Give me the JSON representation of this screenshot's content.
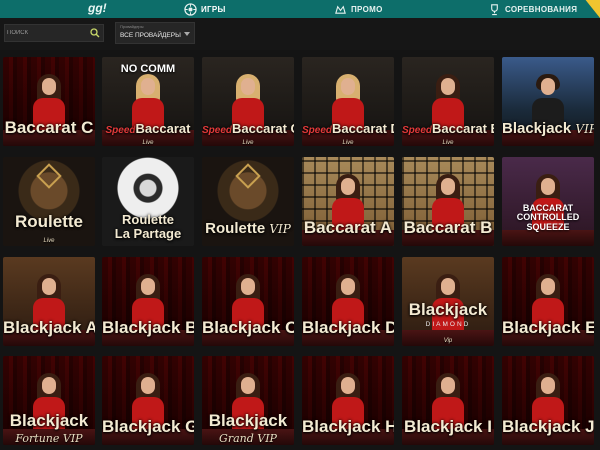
{
  "header": {
    "logo": "gg!",
    "nav": [
      {
        "label": "ИГРЫ",
        "icon": "games-icon",
        "active": true
      },
      {
        "label": "ПРОМО",
        "icon": "promo-icon",
        "active": false
      },
      {
        "label": "СОРЕВНОВАНИЯ",
        "icon": "trophy-icon",
        "active": false
      }
    ],
    "accent_color": "#0d6e6a"
  },
  "filters": {
    "search_placeholder": "ПОИСК",
    "provider_caption": "Провайдеры",
    "provider_value": "ВСЕ ПРОВАЙДЕРЫ"
  },
  "games": [
    {
      "title": "Baccarat C",
      "style": "red",
      "dealer": "brunette"
    },
    {
      "prefix": "Speed",
      "title": "Baccarat",
      "sub": "Live",
      "top": "NO COMM",
      "style": "dark",
      "dealer": "blonde"
    },
    {
      "prefix": "Speed",
      "title": "Baccarat C",
      "sub": "Live",
      "style": "dark",
      "dealer": "blonde"
    },
    {
      "prefix": "Speed",
      "title": "Baccarat D",
      "sub": "Live",
      "style": "dark",
      "dealer": "blonde"
    },
    {
      "prefix": "Speed",
      "title": "Baccarat E",
      "sub": "Live",
      "style": "dark",
      "dealer": "brunette"
    },
    {
      "title": "Blackjack",
      "suffix": "VIP M",
      "style": "studio",
      "dealer": "man"
    },
    {
      "title": "Roulette",
      "sub": "Live",
      "style": "roulette"
    },
    {
      "title": "Roulette",
      "title2": "La Partage",
      "style": "whiteroul"
    },
    {
      "title": "Roulette",
      "suffix": "VIP",
      "style": "roulette"
    },
    {
      "title": "Baccarat A",
      "style": "lattice",
      "dealer": "brunette"
    },
    {
      "title": "Baccarat B",
      "style": "lattice",
      "dealer": "brunette"
    },
    {
      "title": "BACCARAT CONTROLLED SQUEEZE",
      "style": "purple",
      "dealer": "brunette"
    },
    {
      "title": "Blackjack A",
      "style": "casino",
      "dealer": "brunette"
    },
    {
      "title": "Blackjack B",
      "style": "red",
      "dealer": "brunette"
    },
    {
      "title": "Blackjack C",
      "style": "red",
      "dealer": "brunette"
    },
    {
      "title": "Blackjack D",
      "style": "red",
      "dealer": "brunette"
    },
    {
      "title": "Blackjack",
      "diamond": "DIAMOND",
      "sub": "Vip",
      "style": "casino",
      "dealer": "brunette"
    },
    {
      "title": "Blackjack E",
      "style": "red",
      "dealer": "brunette"
    },
    {
      "title": "Blackjack",
      "sub": "Fortune VIP",
      "style": "red",
      "dealer": "brunette"
    },
    {
      "title": "Blackjack G",
      "style": "red",
      "dealer": "brunette"
    },
    {
      "title": "Blackjack",
      "sub": "Grand VIP",
      "style": "red",
      "dealer": "brunette"
    },
    {
      "title": "Blackjack H",
      "style": "red",
      "dealer": "brunette"
    },
    {
      "title": "Blackjack I",
      "style": "red",
      "dealer": "brunette"
    },
    {
      "title": "Blackjack J",
      "style": "red",
      "dealer": "brunette"
    }
  ]
}
